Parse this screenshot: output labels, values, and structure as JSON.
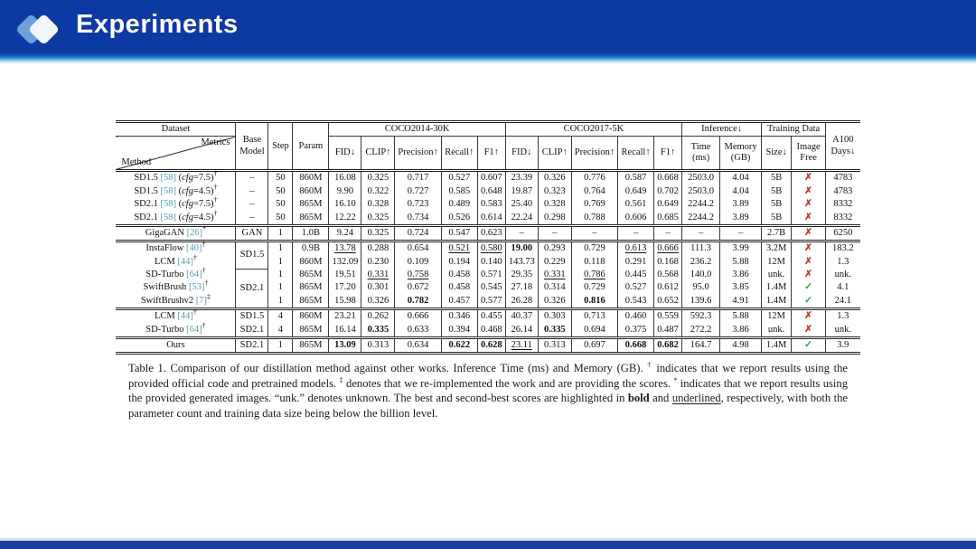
{
  "slide": {
    "title": "Experiments",
    "colors": {
      "header_blue": "#0d3aa2",
      "bottom_bar_blue": "#1a3f9e",
      "citation_teal": "#5b9bb0",
      "cross_red": "#c0392b",
      "check_green": "#2e9e44"
    },
    "icons": {
      "logo": "double-diamond",
      "cross": "✗",
      "check": "✓"
    }
  },
  "table": {
    "headers": {
      "dataset": "Dataset",
      "method": "Method",
      "metrics": "Metrics",
      "base1": "Base",
      "base2": "Model",
      "step": "Step",
      "param": "Param",
      "coco2014": "COCO2014-30K",
      "coco2017": "COCO2017-5K",
      "inference": "Inference↓",
      "training": "Training Data",
      "a100_1": "A100",
      "a100_2": "Days↓",
      "metric_cols": [
        "FID↓",
        "CLIP↑",
        "Precision↑",
        "Recall↑",
        "F1↑"
      ],
      "time1": "Time",
      "time2": "(ms)",
      "mem1": "Memory",
      "mem2": "(GB)",
      "size": "Size↓",
      "img1": "Image",
      "img2": "Free"
    },
    "rows": [
      {
        "method": {
          "name": "SD1.5",
          "cite": "[58]",
          "cfg": "7.5",
          "sup": "†"
        },
        "base": {
          "label": "–"
        },
        "step": "50",
        "param": "860M",
        "c14": [
          "16.08",
          "0.325",
          "0.717",
          "0.527",
          "0.607"
        ],
        "c17": [
          "23.39",
          "0.326",
          "0.776",
          "0.587",
          "0.668"
        ],
        "time": "2503.0",
        "mem": "4.04",
        "size": "5B",
        "free": "cross",
        "days": "4783",
        "sep": true
      },
      {
        "method": {
          "name": "SD1.5",
          "cite": "[58]",
          "cfg": "4.5",
          "sup": "†"
        },
        "base": {
          "label": "–"
        },
        "step": "50",
        "param": "860M",
        "c14": [
          "9.90",
          "0.322",
          "0.727",
          "0.585",
          "0.648"
        ],
        "c17": [
          "19.87",
          "0.323",
          "0.764",
          "0.649",
          "0.702"
        ],
        "time": "2503.0",
        "mem": "4.04",
        "size": "5B",
        "free": "cross",
        "days": "4783"
      },
      {
        "method": {
          "name": "SD2.1",
          "cite": "[58]",
          "cfg": "7.5",
          "sup": "†"
        },
        "base": {
          "label": "–"
        },
        "step": "50",
        "param": "865M",
        "c14": [
          "16.10",
          "0.328",
          "0.723",
          "0.489",
          "0.583"
        ],
        "c17": [
          "25.40",
          "0.328",
          "0.769",
          "0.561",
          "0.649"
        ],
        "time": "2244.2",
        "mem": "3.89",
        "size": "5B",
        "free": "cross",
        "days": "8332"
      },
      {
        "method": {
          "name": "SD2.1",
          "cite": "[58]",
          "cfg": "4.5",
          "sup": "†"
        },
        "base": {
          "label": "–"
        },
        "step": "50",
        "param": "865M",
        "c14": [
          "12.22",
          "0.325",
          "0.734",
          "0.526",
          "0.614"
        ],
        "c17": [
          "22.24",
          "0.298",
          "0.788",
          "0.606",
          "0.685"
        ],
        "time": "2244.2",
        "mem": "3.89",
        "size": "5B",
        "free": "cross",
        "days": "8332"
      },
      {
        "method": {
          "name": "GigaGAN",
          "cite": "[26]",
          "sup": "*"
        },
        "base": {
          "label": "GAN"
        },
        "step": "1",
        "param": "1.0B",
        "c14": [
          "9.24",
          "0.325",
          "0.724",
          "0.547",
          "0.623"
        ],
        "c17": [
          "–",
          "–",
          "–",
          "–",
          "–"
        ],
        "time": "–",
        "mem": "–",
        "size": "2.7B",
        "free": "cross",
        "days": "6250",
        "sep": true
      },
      {
        "method": {
          "name": "InstaFlow",
          "cite": "[40]",
          "sup": "†"
        },
        "base": {
          "label": "SD1.5",
          "span": 2,
          "rule": true
        },
        "step": "1",
        "param": "0.9B",
        "c14": [
          {
            "t": "13.78",
            "s": "u"
          },
          "0.288",
          "0.654",
          {
            "t": "0.521",
            "s": "u"
          },
          {
            "t": "0.580",
            "s": "u"
          }
        ],
        "c17": [
          {
            "t": "19.00",
            "s": "b"
          },
          "0.293",
          "0.729",
          {
            "t": "0.613",
            "s": "u"
          },
          {
            "t": "0.666",
            "s": "u"
          }
        ],
        "time": "111.3",
        "mem": "3.99",
        "size": "3.2M",
        "free": "cross",
        "days": "183.2",
        "sep": true
      },
      {
        "method": {
          "name": "LCM",
          "cite": "[44]",
          "sup": "†"
        },
        "base": null,
        "step": "1",
        "param": "860M",
        "c14": [
          "132.09",
          "0.230",
          "0.109",
          "0.194",
          "0.140"
        ],
        "c17": [
          "143.73",
          "0.229",
          "0.118",
          "0.291",
          "0.168"
        ],
        "time": "236.2",
        "mem": "5.88",
        "size": "12M",
        "free": "cross",
        "days": "1.3"
      },
      {
        "method": {
          "name": "SD-Turbo",
          "cite": "[64]",
          "sup": "†"
        },
        "base": {
          "label": "SD2.1",
          "span": 3
        },
        "step": "1",
        "param": "865M",
        "c14": [
          "19.51",
          {
            "t": "0.331",
            "s": "u"
          },
          {
            "t": "0.758",
            "s": "u"
          },
          "0.458",
          "0.571"
        ],
        "c17": [
          "29.35",
          {
            "t": "0.331",
            "s": "u"
          },
          {
            "t": "0.786",
            "s": "u"
          },
          "0.445",
          "0.568"
        ],
        "time": "140.0",
        "mem": "3.86",
        "size": "unk.",
        "free": "cross",
        "days": "unk.",
        "gap": true
      },
      {
        "method": {
          "name": "SwiftBrush",
          "cite": "[53]",
          "sup": "†"
        },
        "base": null,
        "step": "1",
        "param": "865M",
        "c14": [
          "17.20",
          "0.301",
          "0.672",
          "0.458",
          "0.545"
        ],
        "c17": [
          "27.18",
          "0.314",
          "0.729",
          "0.527",
          "0.612"
        ],
        "time": "95.0",
        "mem": "3.85",
        "size": "1.4M",
        "free": "check",
        "days": "4.1"
      },
      {
        "method": {
          "name": "SwiftBrushv2",
          "cite": "[7]",
          "sup": "‡"
        },
        "base": null,
        "step": "1",
        "param": "865M",
        "c14": [
          "15.98",
          "0.326",
          {
            "t": "0.782",
            "s": "b"
          },
          "0.457",
          "0.577"
        ],
        "c17": [
          "26.28",
          "0.326",
          {
            "t": "0.816",
            "s": "b"
          },
          "0.543",
          "0.652"
        ],
        "time": "139.6",
        "mem": "4.91",
        "size": "1.4M",
        "free": "check",
        "days": "24.1"
      },
      {
        "method": {
          "name": "LCM",
          "cite": "[44]",
          "sup": "†"
        },
        "base": {
          "label": "SD1.5"
        },
        "step": "4",
        "param": "860M",
        "c14": [
          "23.21",
          "0.262",
          "0.666",
          "0.346",
          "0.455"
        ],
        "c17": [
          "40.37",
          "0.303",
          "0.713",
          "0.460",
          "0.559"
        ],
        "time": "592.3",
        "mem": "5.88",
        "size": "12M",
        "free": "cross",
        "days": "1.3",
        "sep": true
      },
      {
        "method": {
          "name": "SD-Turbo",
          "cite": "[64]",
          "sup": "†"
        },
        "base": {
          "label": "SD2.1"
        },
        "step": "4",
        "param": "865M",
        "c14": [
          "16.14",
          {
            "t": "0.335",
            "s": "b"
          },
          "0.633",
          "0.394",
          "0.468"
        ],
        "c17": [
          "26.14",
          {
            "t": "0.335",
            "s": "b"
          },
          "0.694",
          "0.375",
          "0.487"
        ],
        "time": "272.2",
        "mem": "3.86",
        "size": "unk.",
        "free": "cross",
        "days": "unk."
      },
      {
        "method": {
          "name": "Ours"
        },
        "base": {
          "label": "SD2.1"
        },
        "step": "1",
        "param": "865M",
        "c14": [
          {
            "t": "13.09",
            "s": "b"
          },
          "0.313",
          "0.634",
          {
            "t": "0.622",
            "s": "b"
          },
          {
            "t": "0.628",
            "s": "b"
          }
        ],
        "c17": [
          {
            "t": "23.11",
            "s": "u"
          },
          "0.313",
          "0.697",
          {
            "t": "0.668",
            "s": "b"
          },
          {
            "t": "0.682",
            "s": "b"
          }
        ],
        "time": "164.7",
        "mem": "4.98",
        "size": "1.4M",
        "free": "check",
        "days": "3.9",
        "sep": true
      }
    ]
  },
  "caption": {
    "segments": [
      {
        "t": "Table 1.  Comparison of our distillation method against other works.  Inference Time (ms) and Memory (GB). "
      },
      {
        "t": "†",
        "sup": true
      },
      {
        "t": " indicates that we report results using the provided official code and pretrained models. "
      },
      {
        "t": "‡",
        "sup": true
      },
      {
        "t": " denotes that we re-implemented the work and are providing the scores. "
      },
      {
        "t": "*",
        "sup": true
      },
      {
        "t": " indicates that we report results using the provided generated images.  “unk.” denotes unknown.  The best and second-best scores are highlighted in "
      },
      {
        "t": "bold",
        "bold": true
      },
      {
        "t": " and "
      },
      {
        "t": "underlined",
        "underline": true
      },
      {
        "t": ", respectively, with both the parameter count and training data size being below the billion level."
      }
    ]
  }
}
